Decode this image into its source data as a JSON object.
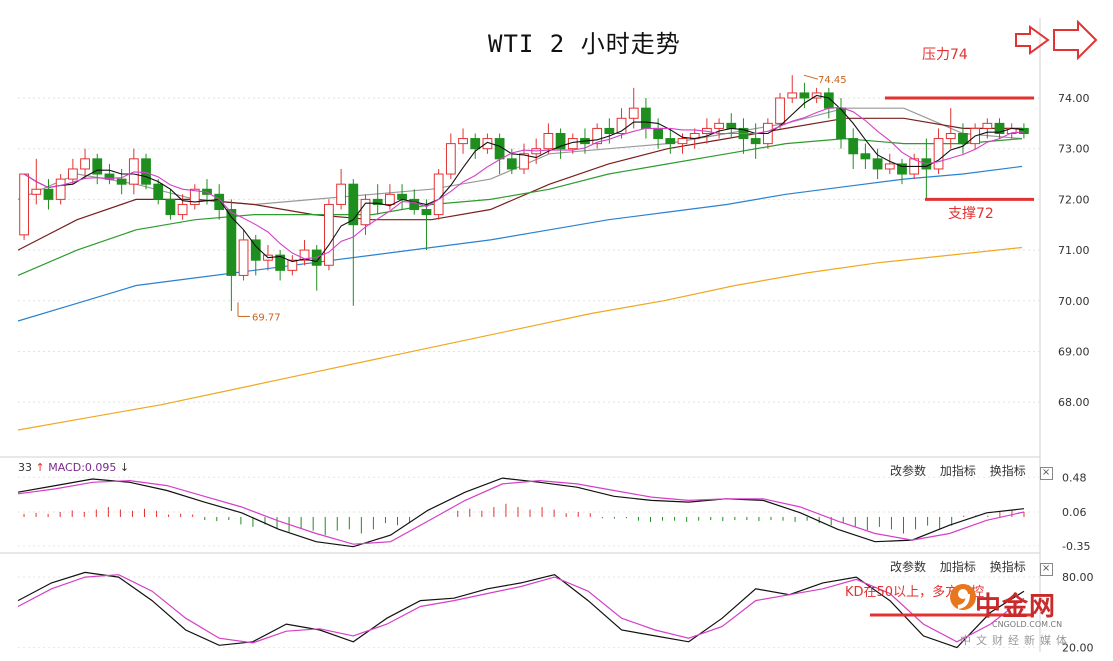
{
  "title": "WTI 2 小时走势",
  "annotations": {
    "pressure": "压力74",
    "support": "支撑72",
    "kd_note": "KD在50以上，多方掌控",
    "price_high": "74.45",
    "price_low": "69.77"
  },
  "indicator_label": {
    "prefix": "33",
    "up_arrow": "↑",
    "macd": "MACD:0.095",
    "down_arrow": "↓"
  },
  "panel_buttons": [
    "改参数",
    "加指标",
    "换指标"
  ],
  "close_glyph": "×",
  "logo": {
    "name": "中金网",
    "url": "CNGOLD.COM.CN",
    "sub": "中文财经新媒体"
  },
  "colors": {
    "up": "#e23232",
    "down": "#1e8f1e",
    "ma_black": "#111111",
    "ma_magenta": "#d63fc8",
    "ma_gray": "#999999",
    "ma_darkred": "#7b1f1f",
    "ma_green": "#2e9c2e",
    "ma_blue": "#2a82d0",
    "ma_orange": "#f0a820"
  },
  "chart_data": [
    {
      "type": "candlestick",
      "title": "WTI 2 小时走势",
      "yticks": [
        "68.00",
        "69.00",
        "70.00",
        "71.00",
        "72.00",
        "73.00",
        "74.00"
      ],
      "ylim": [
        67.45,
        74.75
      ],
      "levels": [
        {
          "name": "压力74",
          "value": 74.0
        },
        {
          "name": "支撑72",
          "value": 72.0
        }
      ],
      "marks": [
        {
          "label": "74.45",
          "value": 74.45
        },
        {
          "label": "69.77",
          "value": 69.77
        }
      ],
      "candles": [
        [
          71.3,
          72.5,
          72.5,
          71.2
        ],
        [
          72.1,
          72.8,
          72.2,
          71.9
        ],
        [
          72.2,
          72.4,
          72.0,
          71.8
        ],
        [
          72.0,
          72.5,
          72.4,
          71.9
        ],
        [
          72.4,
          72.8,
          72.6,
          72.3
        ],
        [
          72.6,
          73.0,
          72.8,
          72.4
        ],
        [
          72.8,
          72.9,
          72.5,
          72.3
        ],
        [
          72.5,
          72.7,
          72.4,
          72.3
        ],
        [
          72.4,
          72.6,
          72.3,
          72.1
        ],
        [
          72.3,
          73.0,
          72.8,
          72.1
        ],
        [
          72.8,
          72.9,
          72.3,
          72.2
        ],
        [
          72.3,
          72.4,
          72.0,
          71.9
        ],
        [
          72.0,
          72.2,
          71.7,
          71.6
        ],
        [
          71.7,
          72.1,
          71.9,
          71.6
        ],
        [
          71.9,
          72.3,
          72.2,
          71.8
        ],
        [
          72.2,
          72.4,
          72.1,
          71.9
        ],
        [
          72.1,
          72.3,
          71.8,
          71.6
        ],
        [
          71.8,
          72.0,
          70.5,
          69.8
        ],
        [
          70.5,
          71.4,
          71.2,
          70.4
        ],
        [
          71.2,
          71.3,
          70.8,
          70.5
        ],
        [
          70.8,
          71.1,
          70.9,
          70.6
        ],
        [
          70.9,
          71.0,
          70.6,
          70.4
        ],
        [
          70.6,
          70.9,
          70.8,
          70.5
        ],
        [
          70.8,
          71.2,
          71.0,
          70.7
        ],
        [
          71.0,
          71.1,
          70.7,
          70.2
        ],
        [
          70.7,
          72.0,
          71.9,
          70.6
        ],
        [
          71.9,
          72.6,
          72.3,
          71.8
        ],
        [
          72.3,
          72.4,
          71.5,
          69.9
        ],
        [
          71.5,
          72.1,
          72.0,
          71.3
        ],
        [
          72.0,
          72.3,
          71.9,
          71.7
        ],
        [
          71.9,
          72.3,
          72.1,
          71.8
        ],
        [
          72.1,
          72.3,
          72.0,
          71.8
        ],
        [
          72.0,
          72.2,
          71.8,
          71.7
        ],
        [
          71.8,
          72.0,
          71.7,
          71.0
        ],
        [
          71.7,
          72.6,
          72.5,
          71.6
        ],
        [
          72.5,
          73.3,
          73.1,
          72.4
        ],
        [
          73.1,
          73.4,
          73.2,
          72.9
        ],
        [
          73.2,
          73.3,
          73.0,
          72.8
        ],
        [
          73.0,
          73.3,
          73.2,
          72.9
        ],
        [
          73.2,
          73.3,
          72.8,
          72.5
        ],
        [
          72.8,
          73.0,
          72.6,
          72.5
        ],
        [
          72.6,
          73.1,
          72.9,
          72.5
        ],
        [
          72.9,
          73.2,
          73.0,
          72.7
        ],
        [
          73.0,
          73.5,
          73.3,
          72.9
        ],
        [
          73.3,
          73.4,
          73.0,
          72.8
        ],
        [
          73.0,
          73.3,
          73.2,
          72.9
        ],
        [
          73.2,
          73.4,
          73.1,
          72.9
        ],
        [
          73.1,
          73.5,
          73.4,
          73.0
        ],
        [
          73.4,
          73.6,
          73.3,
          73.1
        ],
        [
          73.3,
          73.8,
          73.6,
          73.2
        ],
        [
          73.6,
          74.2,
          73.8,
          73.4
        ],
        [
          73.8,
          74.0,
          73.4,
          73.2
        ],
        [
          73.4,
          73.6,
          73.2,
          73.0
        ],
        [
          73.2,
          73.4,
          73.1,
          72.9
        ],
        [
          73.1,
          73.3,
          73.2,
          72.9
        ],
        [
          73.2,
          73.4,
          73.3,
          73.0
        ],
        [
          73.3,
          73.6,
          73.4,
          73.1
        ],
        [
          73.4,
          73.6,
          73.5,
          73.2
        ],
        [
          73.5,
          73.7,
          73.4,
          73.2
        ],
        [
          73.4,
          73.6,
          73.2,
          72.9
        ],
        [
          73.2,
          73.5,
          73.1,
          72.8
        ],
        [
          73.1,
          73.6,
          73.5,
          73.0
        ],
        [
          73.5,
          74.1,
          74.0,
          73.4
        ],
        [
          74.0,
          74.45,
          74.1,
          73.9
        ],
        [
          74.1,
          74.3,
          74.0,
          73.8
        ],
        [
          74.0,
          74.2,
          74.1,
          73.9
        ],
        [
          74.1,
          74.2,
          73.8,
          73.6
        ],
        [
          73.8,
          74.0,
          73.2,
          73.0
        ],
        [
          73.2,
          73.4,
          72.9,
          72.6
        ],
        [
          72.9,
          73.1,
          72.8,
          72.6
        ],
        [
          72.8,
          73.0,
          72.6,
          72.4
        ],
        [
          72.6,
          72.9,
          72.7,
          72.5
        ],
        [
          72.7,
          72.8,
          72.5,
          72.3
        ],
        [
          72.5,
          72.9,
          72.8,
          72.4
        ],
        [
          72.8,
          73.2,
          72.6,
          72.0
        ],
        [
          72.6,
          73.4,
          73.2,
          72.5
        ],
        [
          73.2,
          73.8,
          73.3,
          73.0
        ],
        [
          73.3,
          73.5,
          73.1,
          72.9
        ],
        [
          73.1,
          73.5,
          73.4,
          73.0
        ],
        [
          73.4,
          73.6,
          73.5,
          73.2
        ],
        [
          73.5,
          73.6,
          73.3,
          73.2
        ],
        [
          73.3,
          73.5,
          73.4,
          73.2
        ],
        [
          73.4,
          73.5,
          73.3,
          73.2
        ]
      ],
      "ma_series": [
        {
          "color": "ma_gray",
          "values": [
            72.0,
            72.5,
            72.3,
            72.0,
            71.9,
            72.0,
            72.1,
            72.2,
            72.4,
            72.9,
            73.0,
            73.1,
            73.3,
            73.5,
            73.8,
            73.8,
            73.3,
            73.2
          ]
        },
        {
          "color": "ma_darkred",
          "values": [
            71.0,
            71.6,
            72.0,
            72.0,
            71.9,
            71.7,
            71.6,
            71.6,
            71.8,
            72.3,
            72.7,
            73.0,
            73.2,
            73.4,
            73.6,
            73.6,
            73.4,
            73.4
          ]
        },
        {
          "color": "ma_green",
          "values": [
            70.5,
            71.0,
            71.4,
            71.6,
            71.7,
            71.7,
            71.7,
            71.9,
            72.0,
            72.2,
            72.5,
            72.7,
            72.9,
            73.1,
            73.2,
            73.1,
            73.1,
            73.2
          ]
        },
        {
          "color": "ma_blue",
          "values": [
            69.6,
            69.95,
            70.3,
            70.45,
            70.6,
            70.75,
            70.9,
            71.05,
            71.2,
            71.4,
            71.6,
            71.75,
            71.9,
            72.1,
            72.25,
            72.4,
            72.5,
            72.65
          ]
        },
        {
          "color": "ma_orange",
          "values": [
            67.45,
            67.7,
            67.95,
            68.25,
            68.55,
            68.85,
            69.15,
            69.45,
            69.75,
            70.0,
            70.3,
            70.55,
            70.75,
            70.9,
            71.05
          ]
        }
      ]
    },
    {
      "type": "bar",
      "yticks": [
        "0.48",
        "0.06",
        "-0.35"
      ],
      "ylim": [
        -0.4,
        0.52
      ],
      "macd": 0.095,
      "lines": [
        {
          "color": "ma_black",
          "values": [
            0.3,
            0.38,
            0.46,
            0.42,
            0.32,
            0.18,
            0.05,
            -0.15,
            -0.3,
            -0.36,
            -0.22,
            0.08,
            0.3,
            0.47,
            0.42,
            0.36,
            0.25,
            0.2,
            0.18,
            0.22,
            0.2,
            0.05,
            -0.15,
            -0.3,
            -0.28,
            -0.1,
            0.05,
            0.1
          ]
        },
        {
          "color": "ma_magenta",
          "values": [
            0.28,
            0.34,
            0.42,
            0.44,
            0.38,
            0.25,
            0.12,
            -0.05,
            -0.2,
            -0.33,
            -0.3,
            -0.05,
            0.2,
            0.4,
            0.44,
            0.4,
            0.32,
            0.24,
            0.2,
            0.22,
            0.22,
            0.12,
            -0.05,
            -0.2,
            -0.28,
            -0.2,
            -0.04,
            0.06
          ]
        }
      ],
      "hist": [
        0.05,
        0.08,
        0.12,
        0.1,
        0.04,
        -0.05,
        -0.12,
        -0.18,
        -0.22,
        -0.2,
        -0.1,
        0.0,
        0.1,
        0.16,
        0.12,
        0.06,
        -0.02,
        -0.06,
        -0.06,
        -0.05,
        -0.05,
        -0.06,
        -0.1,
        -0.16,
        -0.2,
        -0.14,
        0.02,
        0.08
      ]
    },
    {
      "type": "line",
      "yticks": [
        "80.00",
        "20.00"
      ],
      "ylim": [
        18,
        86
      ],
      "series": [
        {
          "color": "ma_black",
          "values": [
            60,
            75,
            84,
            80,
            60,
            35,
            22,
            25,
            40,
            35,
            25,
            45,
            60,
            62,
            70,
            75,
            82,
            60,
            35,
            30,
            25,
            45,
            70,
            65,
            75,
            80,
            60,
            30,
            20,
            50,
            68
          ]
        },
        {
          "color": "ma_magenta",
          "values": [
            55,
            70,
            80,
            82,
            68,
            45,
            28,
            24,
            34,
            36,
            30,
            40,
            55,
            60,
            66,
            72,
            80,
            68,
            45,
            35,
            28,
            38,
            60,
            65,
            70,
            78,
            66,
            40,
            25,
            40,
            62
          ]
        }
      ]
    }
  ]
}
